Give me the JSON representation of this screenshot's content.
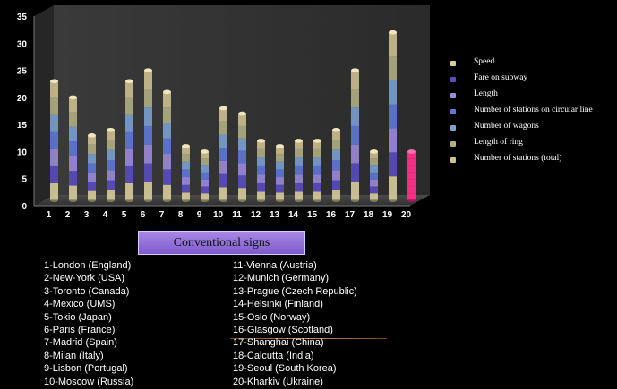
{
  "chart_data": {
    "type": "bar",
    "style": "stacked 3D cylinders",
    "categories": [
      "1",
      "2",
      "3",
      "4",
      "5",
      "6",
      "7",
      "8",
      "9",
      "10",
      "11",
      "12",
      "13",
      "14",
      "15",
      "16",
      "17",
      "18",
      "19",
      "20"
    ],
    "totals": [
      22,
      19,
      12,
      13,
      22,
      24,
      20,
      10,
      9,
      17,
      16,
      11,
      10,
      11,
      11,
      13,
      24,
      9,
      31,
      9
    ],
    "ylim": [
      0,
      35
    ],
    "yticks": [
      0,
      5,
      10,
      15,
      20,
      25,
      30,
      35
    ],
    "series": [
      {
        "name": "Speed",
        "color": "#d8cc9a"
      },
      {
        "name": "Fare on subway",
        "color": "#5a4cc0"
      },
      {
        "name": "Length",
        "color": "#9a8ad8"
      },
      {
        "name": "Number of stations on circular line",
        "color": "#5f78d8"
      },
      {
        "name": "Number of wagons",
        "color": "#7aa0d0"
      },
      {
        "name": "Length of ring",
        "color": "#b0ae82"
      },
      {
        "name": "Number of stations (total)",
        "color": "#cdbf8e"
      }
    ],
    "highlight": {
      "category": "20",
      "color": "#ff2d8a"
    }
  },
  "conventional_signs": "Conventional signs",
  "cities_left": [
    "1-London (England)",
    "2-New-York (USA)",
    "3-Toronto (Canada)",
    "4-Mexico (UMS)",
    "5-Tokio (Japan)",
    "6-Paris (France)",
    "7-Madrid (Spain)",
    "8-Milan (Italy)",
    "9-Lisbon (Portugal)",
    "10-Moscow (Russia)"
  ],
  "cities_right": [
    "11-Vienna (Austria)",
    "12-Munich (Germany)",
    "13-Prague (Czech Republic)",
    "14-Helsinki (Finland)",
    "15-Oslo (Norway)",
    "16-Glasgow (Scotland)",
    "17-Shanghai (China)",
    "18-Calcutta (India)",
    "19-Seoul (South Korea)",
    "20-Kharkiv (Ukraine)"
  ]
}
